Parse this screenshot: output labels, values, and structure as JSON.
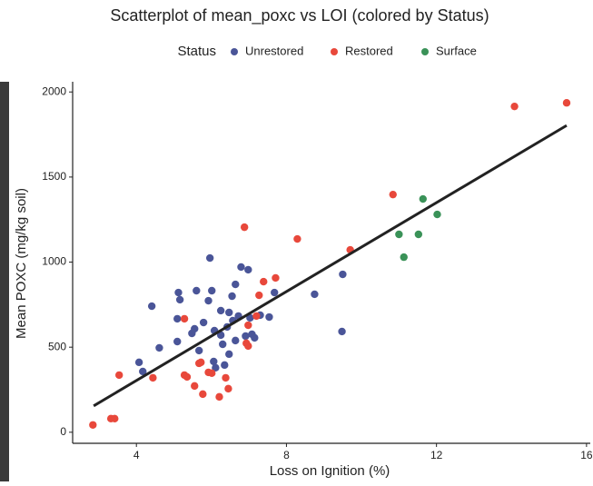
{
  "chart_data": {
    "type": "scatter",
    "title": "Scatterplot of mean_poxc vs LOI (colored by Status)",
    "legend_title": "Status",
    "legend_position": "top",
    "x_label": "Loss on Ignition (%)",
    "y_label": "Mean POXC (mg/kg soil)",
    "xlim": [
      2.3,
      16.1
    ],
    "ylim": [
      -65,
      2060
    ],
    "xticks": [
      4,
      8,
      12,
      16
    ],
    "yticks": [
      0,
      500,
      1000,
      1500,
      2000
    ],
    "grid": false,
    "series": [
      {
        "name": "Unrestored",
        "color": "#4a5598",
        "x": [
          4.07,
          4.17,
          4.41,
          4.61,
          5.12,
          5.16,
          5.09,
          5.09,
          5.48,
          5.55,
          5.6,
          5.67,
          5.79,
          5.96,
          6.01,
          5.92,
          6.08,
          6.06,
          6.11,
          6.25,
          6.25,
          6.3,
          6.35,
          6.42,
          6.47,
          6.47,
          6.55,
          6.57,
          6.64,
          6.72,
          6.79,
          6.64,
          6.91,
          6.98,
          7.03,
          7.08,
          7.15,
          7.3,
          7.54,
          7.68,
          8.75,
          9.5,
          9.48
        ],
        "values": [
          411,
          357,
          741,
          496,
          821,
          779,
          667,
          533,
          581,
          608,
          832,
          480,
          645,
          1024,
          832,
          773,
          597,
          416,
          379,
          715,
          571,
          517,
          395,
          619,
          704,
          459,
          800,
          656,
          869,
          683,
          971,
          539,
          565,
          955,
          672,
          576,
          555,
          688,
          677,
          821,
          811,
          928,
          592
        ]
      },
      {
        "name": "Restored",
        "color": "#e8483b",
        "x": [
          2.84,
          3.32,
          3.42,
          3.54,
          4.44,
          5.28,
          5.28,
          5.35,
          5.55,
          5.67,
          5.72,
          5.77,
          5.92,
          6.01,
          6.21,
          6.38,
          6.45,
          6.88,
          6.93,
          6.98,
          6.98,
          7.2,
          7.27,
          7.39,
          7.71,
          8.29,
          9.7,
          10.84,
          14.08,
          15.47
        ],
        "values": [
          43,
          80,
          80,
          336,
          320,
          667,
          336,
          325,
          272,
          405,
          411,
          224,
          352,
          347,
          208,
          320,
          256,
          1205,
          523,
          629,
          507,
          683,
          805,
          885,
          907,
          1136,
          1072,
          1397,
          1915,
          1936
        ]
      },
      {
        "name": "Surface",
        "color": "#3a9258",
        "x": [
          11.0,
          11.13,
          11.52,
          11.64,
          12.02
        ],
        "values": [
          1163,
          1029,
          1163,
          1371,
          1280
        ]
      }
    ],
    "trendline": {
      "color": "#222222",
      "x": [
        2.86,
        15.47
      ],
      "values": [
        155,
        1803
      ]
    }
  }
}
